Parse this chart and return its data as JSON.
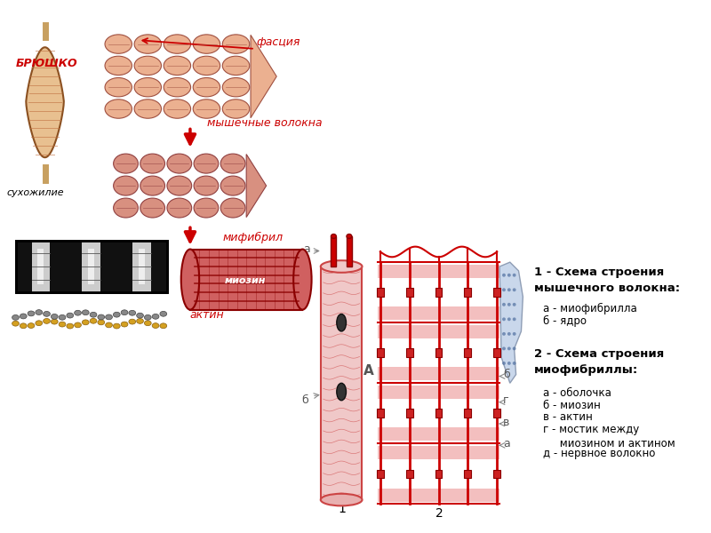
{
  "bg_color": "#ffffff",
  "labels": {
    "bryushko": "БРЮШКО",
    "fascia": "фасция",
    "myshechnye_volokna": "мышечные волокна",
    "sukhozhilie": "сухожилие",
    "mifibril": "мифибрил",
    "miosin": "миозин",
    "aktin": "актин",
    "label_a_top": "а",
    "label_b_left": "б",
    "label_b_right": "б",
    "label_g": "г",
    "label_v": "в",
    "label_a_bottom": "а",
    "label_1": "1",
    "label_2": "2",
    "label_A": "А",
    "scheme1_title": "1 - Схема строения\nмышечного волокна:",
    "scheme1_a": "а - миофибрилла",
    "scheme1_b": "б - ядро",
    "scheme2_title": "2 - Схема строения\nмиофибриллы:",
    "scheme2_a": "а - оболочка",
    "scheme2_b": "б - миозин",
    "scheme2_v": "в - актин",
    "scheme2_g": "г - мостик между\n     миозином и актином",
    "scheme2_d": "д - нервное волокно"
  },
  "colors": {
    "red": "#cc0000",
    "dark_red": "#8b0000",
    "pink_light": "#f5c0c0",
    "pink_mid": "#e09090",
    "pink_dark": "#c87070",
    "muscle_orange": "#d4906060",
    "black": "#000000",
    "gray": "#888888",
    "light_gray": "#aaaaaa",
    "yellow": "#d4a020",
    "white": "#ffffff",
    "blue_gray": "#b0c4d8",
    "text_red": "#cc0000",
    "text_black": "#000000",
    "tendon": "#c8a060"
  }
}
